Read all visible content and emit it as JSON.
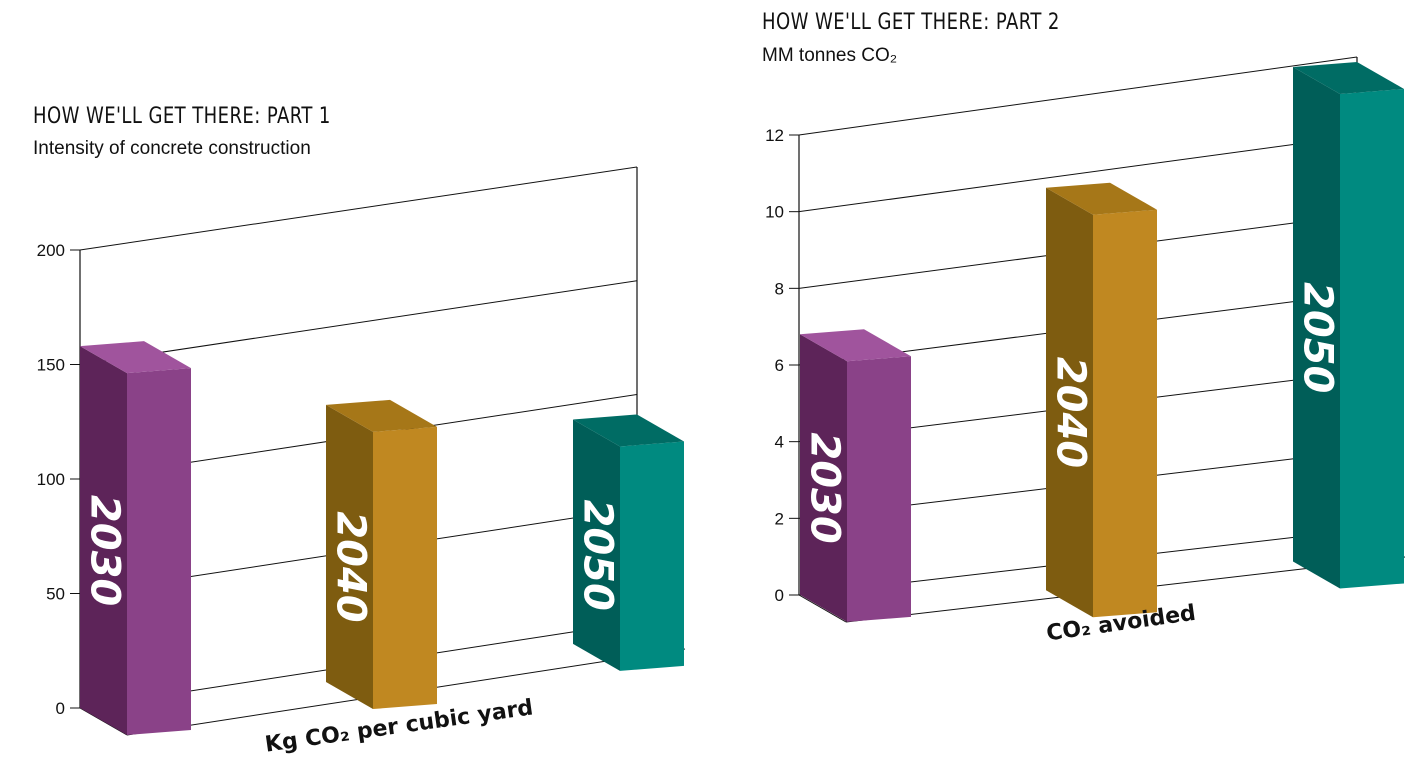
{
  "charts": [
    {
      "heading": "HOW WE'LL GET THERE: PART 1",
      "subheading": "Intensity of concrete construction"
    },
    {
      "heading": "HOW WE'LL GET THERE: PART 2",
      "subheading": "MM tonnes CO₂"
    }
  ],
  "colors": {
    "purple_front": "#8a4288",
    "purple_side": "#5d2459",
    "purple_top": "#a0549d",
    "gold_front": "#c08821",
    "gold_side": "#7e5c10",
    "gold_top": "#a67718",
    "teal_front": "#008a80",
    "teal_side": "#005e58",
    "teal_top": "#006c64"
  },
  "chart_data": [
    {
      "type": "bar",
      "title": "HOW WE'LL GET THERE: PART 1",
      "subtitle": "Intensity of concrete construction",
      "categories": [
        "2030",
        "2040",
        "2050"
      ],
      "values": [
        158,
        121,
        98
      ],
      "xlabel": "Kg CO₂ per cubic yard",
      "ylabel": "",
      "yticks": [
        "0",
        "50",
        "100",
        "150",
        "200"
      ],
      "ylim": [
        0,
        200
      ],
      "grid": true,
      "three_d": true
    },
    {
      "type": "bar",
      "title": "HOW WE'LL GET THERE: PART 2",
      "subtitle": "MM tonnes CO₂",
      "categories": [
        "2030",
        "2040",
        "2050"
      ],
      "values": [
        6.8,
        10.5,
        12.9
      ],
      "xlabel": "CO₂ avoided",
      "ylabel": "",
      "yticks": [
        "0",
        "2",
        "4",
        "6",
        "8",
        "10",
        "12"
      ],
      "ylim": [
        0,
        12
      ],
      "grid": true,
      "three_d": true
    }
  ]
}
